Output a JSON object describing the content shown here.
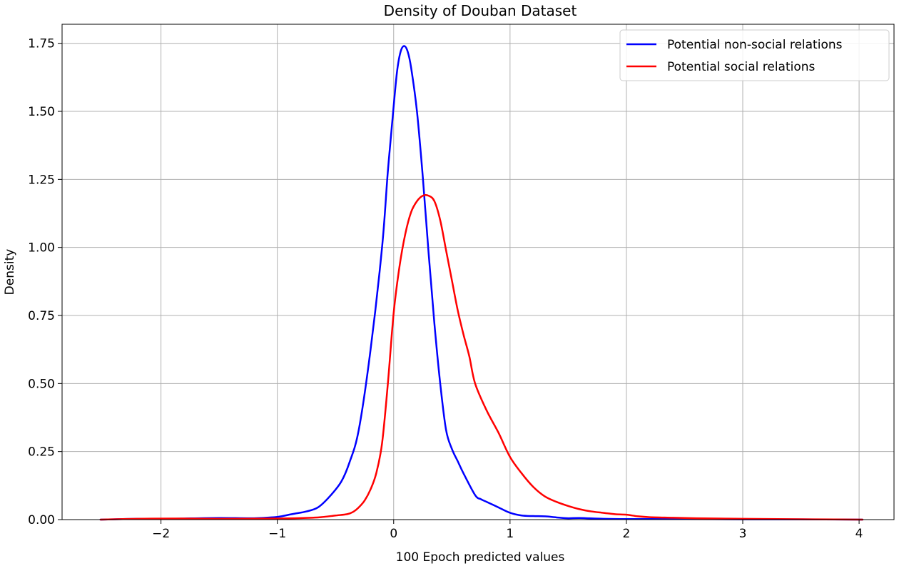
{
  "chart_data": {
    "type": "line",
    "title": "Density of Douban Dataset",
    "xlabel": "100 Epoch predicted values",
    "ylabel": "Density",
    "xlim": [
      -2.85,
      4.3
    ],
    "ylim": [
      0,
      1.82
    ],
    "xticks": [
      -2,
      -1,
      0,
      1,
      2,
      3,
      4
    ],
    "xtick_labels": [
      "−2",
      "−1",
      "0",
      "1",
      "2",
      "3",
      "4"
    ],
    "yticks": [
      0,
      0.25,
      0.5,
      0.75,
      1.0,
      1.25,
      1.5,
      1.75
    ],
    "ytick_labels": [
      "0.00",
      "0.25",
      "0.50",
      "0.75",
      "1.00",
      "1.25",
      "1.50",
      "1.75"
    ],
    "grid": true,
    "legend_position": "top-right",
    "series": [
      {
        "name": "Potential non-social relations",
        "color": "#0000ff",
        "x": [
          -2.52,
          -2.2,
          -2.0,
          -1.8,
          -1.5,
          -1.2,
          -1.0,
          -0.9,
          -0.85,
          -0.75,
          -0.65,
          -0.55,
          -0.45,
          -0.38,
          -0.3,
          -0.2,
          -0.1,
          -0.05,
          0.0,
          0.03,
          0.06,
          0.09,
          0.12,
          0.15,
          0.2,
          0.25,
          0.3,
          0.35,
          0.4,
          0.45,
          0.5,
          0.55,
          0.6,
          0.7,
          0.75,
          0.8,
          0.85,
          0.9,
          1.0,
          1.1,
          1.2,
          1.3,
          1.4,
          1.5,
          1.6,
          1.8,
          2.0,
          2.5,
          3.0,
          3.5,
          4.03
        ],
        "y": [
          0.0,
          0.003,
          0.002,
          0.004,
          0.006,
          0.005,
          0.01,
          0.018,
          0.022,
          0.03,
          0.045,
          0.085,
          0.14,
          0.21,
          0.33,
          0.62,
          1.0,
          1.28,
          1.52,
          1.65,
          1.72,
          1.74,
          1.72,
          1.66,
          1.5,
          1.26,
          0.98,
          0.72,
          0.5,
          0.33,
          0.26,
          0.215,
          0.17,
          0.09,
          0.075,
          0.065,
          0.055,
          0.045,
          0.025,
          0.015,
          0.013,
          0.012,
          0.008,
          0.005,
          0.006,
          0.003,
          0.002,
          0.002,
          0.001,
          0.001,
          0.0
        ]
      },
      {
        "name": "Potential social relations",
        "color": "#ff0000",
        "x": [
          -2.52,
          -2.2,
          -1.9,
          -1.5,
          -1.0,
          -0.7,
          -0.6,
          -0.5,
          -0.4,
          -0.35,
          -0.3,
          -0.25,
          -0.2,
          -0.15,
          -0.1,
          -0.05,
          0.0,
          0.05,
          0.1,
          0.15,
          0.2,
          0.25,
          0.3,
          0.35,
          0.4,
          0.45,
          0.5,
          0.55,
          0.6,
          0.65,
          0.7,
          0.8,
          0.9,
          1.0,
          1.1,
          1.2,
          1.3,
          1.4,
          1.5,
          1.6,
          1.7,
          1.8,
          1.9,
          2.0,
          2.1,
          2.2,
          2.4,
          2.6,
          2.8,
          3.0,
          3.3,
          3.6,
          4.03
        ],
        "y": [
          0.0,
          0.003,
          0.004,
          0.003,
          0.004,
          0.007,
          0.01,
          0.015,
          0.02,
          0.028,
          0.045,
          0.07,
          0.11,
          0.17,
          0.28,
          0.5,
          0.76,
          0.93,
          1.05,
          1.13,
          1.17,
          1.19,
          1.19,
          1.17,
          1.1,
          0.99,
          0.88,
          0.77,
          0.68,
          0.6,
          0.5,
          0.4,
          0.32,
          0.23,
          0.17,
          0.12,
          0.085,
          0.065,
          0.05,
          0.038,
          0.03,
          0.025,
          0.02,
          0.018,
          0.012,
          0.009,
          0.007,
          0.005,
          0.004,
          0.003,
          0.002,
          0.001,
          0.0
        ]
      }
    ]
  }
}
